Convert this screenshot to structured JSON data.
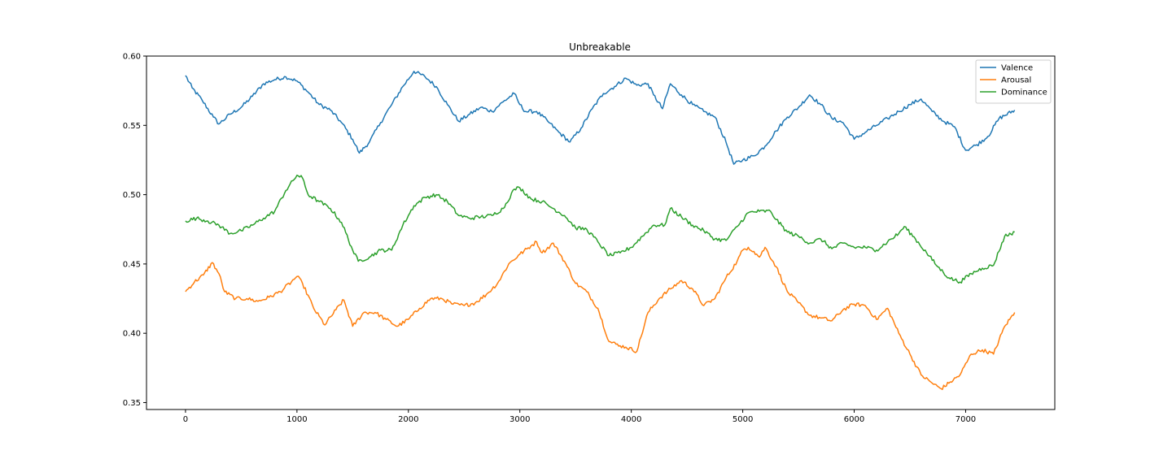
{
  "chart_data": {
    "type": "line",
    "title": "Unbreakable",
    "xlabel": "",
    "ylabel": "",
    "xlim": [
      -350,
      7800
    ],
    "ylim": [
      0.345,
      0.6
    ],
    "xticks": [
      0,
      1000,
      2000,
      3000,
      4000,
      5000,
      6000,
      7000
    ],
    "yticks": [
      0.35,
      0.4,
      0.45,
      0.5,
      0.55,
      0.6
    ],
    "xtick_labels": [
      "0",
      "1000",
      "2000",
      "3000",
      "4000",
      "5000",
      "6000",
      "7000"
    ],
    "ytick_labels": [
      "0.35",
      "0.40",
      "0.45",
      "0.50",
      "0.55",
      "0.60"
    ],
    "grid": false,
    "legend_position": "top-right",
    "series": [
      {
        "name": "Valence",
        "color": "#1f77b4",
        "x": [
          0,
          60,
          150,
          250,
          300,
          400,
          500,
          600,
          700,
          800,
          900,
          1000,
          1100,
          1200,
          1300,
          1400,
          1500,
          1560,
          1650,
          1750,
          1850,
          1950,
          2050,
          2150,
          2250,
          2350,
          2450,
          2550,
          2650,
          2750,
          2850,
          2950,
          3000,
          3050,
          3150,
          3250,
          3350,
          3450,
          3550,
          3650,
          3750,
          3850,
          3950,
          4050,
          4150,
          4200,
          4280,
          4350,
          4450,
          4550,
          4650,
          4750,
          4850,
          4920,
          5000,
          5100,
          5200,
          5300,
          5400,
          5500,
          5600,
          5700,
          5800,
          5900,
          6000,
          6100,
          6200,
          6300,
          6400,
          6500,
          6600,
          6700,
          6800,
          6900,
          7000,
          7100,
          7200,
          7300,
          7440
        ],
        "values": [
          0.586,
          0.577,
          0.568,
          0.556,
          0.551,
          0.558,
          0.563,
          0.571,
          0.58,
          0.583,
          0.585,
          0.582,
          0.574,
          0.565,
          0.561,
          0.552,
          0.54,
          0.53,
          0.538,
          0.552,
          0.565,
          0.578,
          0.589,
          0.585,
          0.578,
          0.565,
          0.553,
          0.558,
          0.563,
          0.56,
          0.567,
          0.573,
          0.565,
          0.56,
          0.56,
          0.553,
          0.545,
          0.538,
          0.548,
          0.562,
          0.573,
          0.578,
          0.584,
          0.579,
          0.58,
          0.572,
          0.562,
          0.58,
          0.572,
          0.565,
          0.56,
          0.556,
          0.538,
          0.522,
          0.525,
          0.528,
          0.535,
          0.546,
          0.556,
          0.563,
          0.572,
          0.565,
          0.555,
          0.552,
          0.54,
          0.545,
          0.55,
          0.555,
          0.56,
          0.565,
          0.569,
          0.56,
          0.553,
          0.549,
          0.532,
          0.536,
          0.542,
          0.555,
          0.561
        ]
      },
      {
        "name": "Arousal",
        "color": "#ff7f0e",
        "x": [
          0,
          80,
          160,
          240,
          300,
          350,
          450,
          550,
          650,
          750,
          850,
          950,
          1000,
          1050,
          1150,
          1250,
          1350,
          1420,
          1500,
          1600,
          1700,
          1800,
          1900,
          2000,
          2100,
          2200,
          2300,
          2400,
          2500,
          2600,
          2700,
          2800,
          2900,
          3000,
          3100,
          3150,
          3200,
          3300,
          3400,
          3500,
          3600,
          3700,
          3800,
          3900,
          3950,
          4050,
          4150,
          4250,
          4350,
          4450,
          4550,
          4650,
          4750,
          4850,
          4950,
          5000,
          5050,
          5100,
          5150,
          5200,
          5300,
          5400,
          5500,
          5600,
          5700,
          5800,
          5900,
          6000,
          6100,
          6200,
          6300,
          6400,
          6500,
          6600,
          6700,
          6780,
          6850,
          6950,
          7050,
          7150,
          7250,
          7350,
          7440
        ],
        "values": [
          0.43,
          0.437,
          0.442,
          0.451,
          0.443,
          0.43,
          0.425,
          0.425,
          0.423,
          0.426,
          0.43,
          0.437,
          0.441,
          0.436,
          0.418,
          0.406,
          0.417,
          0.424,
          0.405,
          0.415,
          0.415,
          0.41,
          0.405,
          0.41,
          0.418,
          0.425,
          0.425,
          0.421,
          0.42,
          0.422,
          0.428,
          0.436,
          0.45,
          0.457,
          0.463,
          0.466,
          0.458,
          0.465,
          0.452,
          0.436,
          0.43,
          0.418,
          0.394,
          0.391,
          0.39,
          0.387,
          0.415,
          0.425,
          0.432,
          0.438,
          0.432,
          0.42,
          0.425,
          0.44,
          0.452,
          0.46,
          0.462,
          0.459,
          0.455,
          0.462,
          0.448,
          0.43,
          0.422,
          0.413,
          0.411,
          0.409,
          0.417,
          0.421,
          0.42,
          0.41,
          0.418,
          0.4,
          0.385,
          0.37,
          0.364,
          0.36,
          0.364,
          0.37,
          0.385,
          0.388,
          0.385,
          0.405,
          0.415
        ]
      },
      {
        "name": "Dominance",
        "color": "#2ca02c",
        "x": [
          0,
          100,
          200,
          300,
          400,
          500,
          600,
          700,
          800,
          900,
          1000,
          1050,
          1100,
          1200,
          1300,
          1400,
          1500,
          1550,
          1650,
          1750,
          1850,
          1950,
          2050,
          2150,
          2250,
          2350,
          2450,
          2550,
          2650,
          2750,
          2850,
          2950,
          3000,
          3100,
          3200,
          3300,
          3400,
          3500,
          3600,
          3700,
          3800,
          3900,
          4000,
          4100,
          4200,
          4300,
          4350,
          4450,
          4550,
          4650,
          4750,
          4850,
          4950,
          5050,
          5150,
          5250,
          5300,
          5400,
          5500,
          5600,
          5700,
          5800,
          5900,
          6000,
          6100,
          6200,
          6300,
          6400,
          6450,
          6550,
          6650,
          6750,
          6850,
          6950,
          7050,
          7150,
          7250,
          7350,
          7440
        ],
        "values": [
          0.481,
          0.483,
          0.481,
          0.478,
          0.472,
          0.474,
          0.478,
          0.483,
          0.488,
          0.503,
          0.514,
          0.512,
          0.5,
          0.495,
          0.49,
          0.48,
          0.46,
          0.452,
          0.455,
          0.46,
          0.46,
          0.478,
          0.492,
          0.498,
          0.5,
          0.495,
          0.485,
          0.483,
          0.484,
          0.485,
          0.49,
          0.504,
          0.505,
          0.497,
          0.495,
          0.49,
          0.485,
          0.476,
          0.475,
          0.466,
          0.456,
          0.458,
          0.462,
          0.47,
          0.478,
          0.478,
          0.49,
          0.484,
          0.478,
          0.474,
          0.468,
          0.467,
          0.477,
          0.487,
          0.488,
          0.488,
          0.482,
          0.473,
          0.47,
          0.465,
          0.468,
          0.461,
          0.465,
          0.462,
          0.462,
          0.46,
          0.466,
          0.472,
          0.477,
          0.468,
          0.458,
          0.448,
          0.44,
          0.437,
          0.443,
          0.447,
          0.449,
          0.47,
          0.473
        ]
      }
    ]
  }
}
